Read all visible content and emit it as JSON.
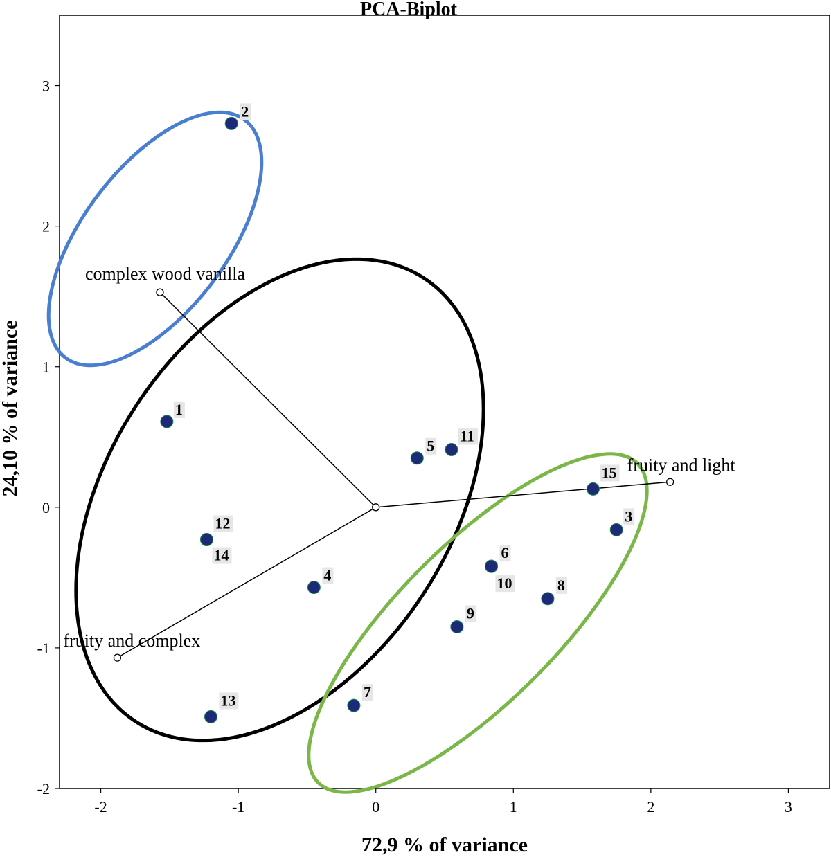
{
  "chart_data": {
    "type": "scatter",
    "title": "PCA-Biplot",
    "xlabel": "72,9 % of variance",
    "ylabel": "24,10 % of variance",
    "xlim": [
      -2.3,
      3.3
    ],
    "ylim": [
      -2.0,
      3.5
    ],
    "xticks": [
      -2,
      -1,
      0,
      1,
      2,
      3
    ],
    "yticks": [
      -2,
      -1,
      0,
      1,
      2,
      3
    ],
    "xtick_labels": [
      "-2",
      "-1",
      "0",
      "1",
      "2",
      "3"
    ],
    "ytick_labels": [
      "-2",
      "-1",
      "0",
      "1",
      "2",
      "3"
    ],
    "grid": false,
    "points": [
      {
        "label": "1",
        "x": -1.52,
        "y": 0.61
      },
      {
        "label": "2",
        "x": -1.05,
        "y": 2.73
      },
      {
        "label": "3",
        "x": 1.75,
        "y": -0.16
      },
      {
        "label": "4",
        "x": -0.45,
        "y": -0.57
      },
      {
        "label": "5",
        "x": 0.3,
        "y": 0.35
      },
      {
        "label": "6",
        "x": 0.84,
        "y": -0.42
      },
      {
        "label": "7",
        "x": -0.16,
        "y": -1.41
      },
      {
        "label": "8",
        "x": 1.25,
        "y": -0.65
      },
      {
        "label": "9",
        "x": 0.59,
        "y": -0.85
      },
      {
        "label": "10",
        "x": 0.84,
        "y": -0.42
      },
      {
        "label": "11",
        "x": 0.55,
        "y": 0.41
      },
      {
        "label": "12",
        "x": -1.23,
        "y": -0.23
      },
      {
        "label": "13",
        "x": -1.2,
        "y": -1.49
      },
      {
        "label": "14",
        "x": -1.23,
        "y": -0.23
      },
      {
        "label": "15",
        "x": 1.58,
        "y": 0.13
      }
    ],
    "vectors": [
      {
        "label": "complex wood vanilla",
        "x": -1.57,
        "y": 1.53
      },
      {
        "label": "fruity and light",
        "x": 2.14,
        "y": 0.18
      },
      {
        "label": "fruity and complex",
        "x": -1.88,
        "y": -1.07
      }
    ],
    "groups": [
      {
        "color": "#4a7fcf",
        "members": [
          "2"
        ]
      },
      {
        "color": "#000000",
        "members": [
          "1",
          "4",
          "5",
          "11",
          "12",
          "13",
          "14"
        ]
      },
      {
        "color": "#7ab648",
        "members": [
          "3",
          "6",
          "7",
          "8",
          "9",
          "10",
          "15"
        ]
      }
    ],
    "point_color": "#1c2a78"
  }
}
